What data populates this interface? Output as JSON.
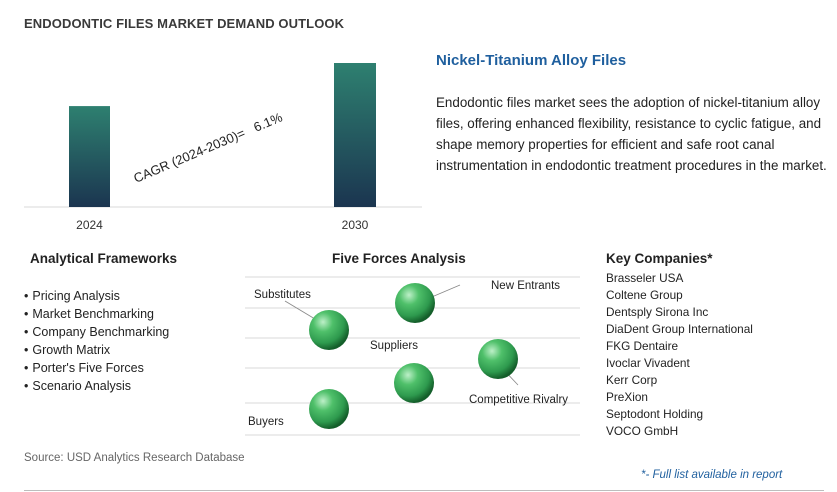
{
  "title": "ENDODONTIC FILES MARKET DEMAND OUTLOOK",
  "chart_data": {
    "type": "bar",
    "categories": [
      "2024",
      "2030"
    ],
    "values": [
      1.0,
      1.427
    ],
    "annotation": "CAGR (2024-2030)=   6.1%",
    "colors": {
      "top": "#2e8070",
      "bottom": "#1b3550"
    }
  },
  "highlight": {
    "title": "Nickel-Titanium Alloy Files",
    "text": "Endodontic files market sees the adoption of nickel-titanium alloy files, offering enhanced flexibility, resistance to cyclic fatigue, and shape memory properties for efficient and safe root canal instrumentation in endodontic treatment procedures in the market."
  },
  "frameworks": {
    "title": "Analytical Frameworks",
    "items": [
      "Pricing Analysis",
      "Market Benchmarking",
      "Company Benchmarking",
      "Growth Matrix",
      "Porter's Five Forces",
      "Scenario Analysis"
    ]
  },
  "five_forces": {
    "title": "Five Forces Analysis",
    "labels": {
      "substitutes": "Substitutes",
      "new_entrants": "New Entrants",
      "suppliers": "Suppliers",
      "competitive_rivalry": "Competitive Rivalry",
      "buyers": "Buyers"
    },
    "sphere_color": "#2e9a4e"
  },
  "companies": {
    "title": "Key Companies*",
    "items": [
      "Brasseler USA",
      "Coltene Group",
      "Dentsply Sirona Inc",
      "DiaDent Group International",
      "FKG Dentaire",
      "Ivoclar Vivadent",
      "Kerr Corp",
      "PreXion",
      "Septodont Holding",
      "VOCO GmbH"
    ]
  },
  "source": "Source: USD Analytics Research Database",
  "footnote": "*- Full list available in report"
}
